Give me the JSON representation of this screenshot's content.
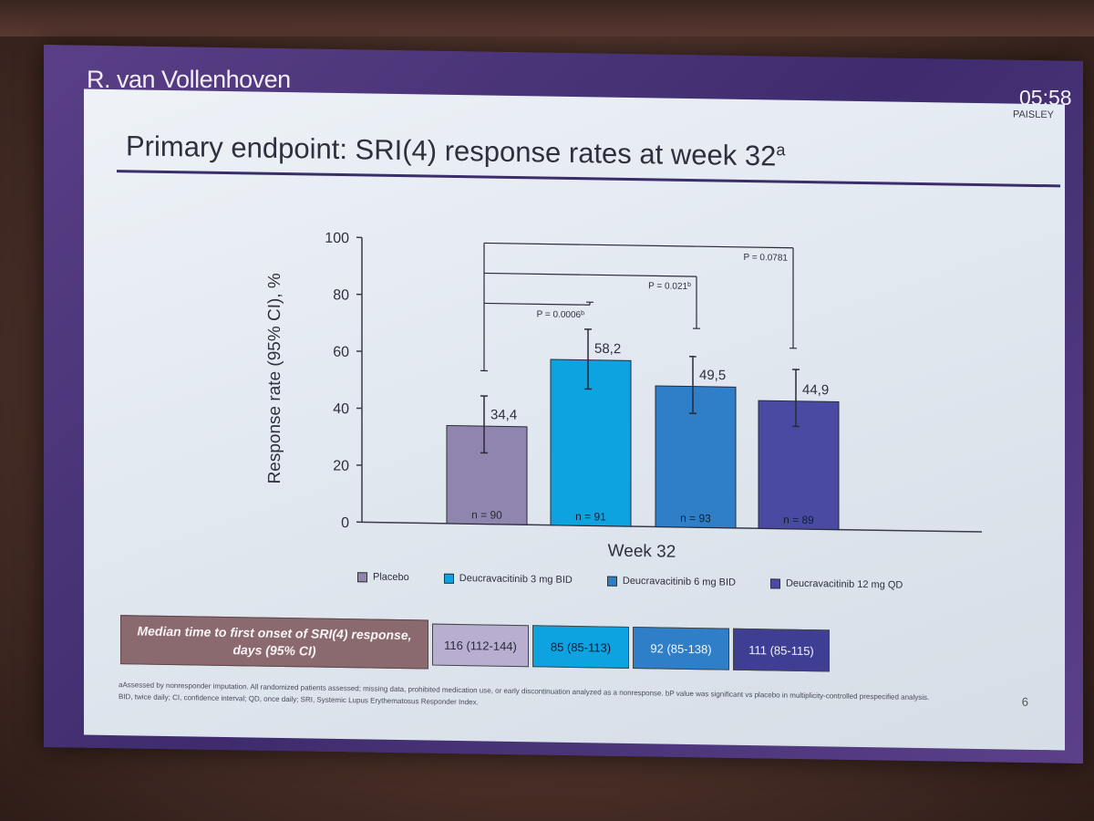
{
  "header": {
    "speaker": "R. van Vollenhoven",
    "clock": "05:58"
  },
  "slide": {
    "study_tag": "PAISLEY",
    "title": "Primary endpoint: SRI(4) response rates at week 32",
    "title_superscript": "a",
    "page_number": "6"
  },
  "chart_data": {
    "type": "bar",
    "ylabel": "Response rate (95% CI), %",
    "xlabel": "Week 32",
    "ylim": [
      0,
      100
    ],
    "yticks": [
      "0",
      "20",
      "40",
      "60",
      "80",
      "100"
    ],
    "grid": false,
    "legend_position": "bottom",
    "series": [
      {
        "name": "Placebo",
        "value": 34.4,
        "label": "34,4",
        "ci": [
          25,
          45
        ],
        "n": "n = 90",
        "color": "#8f85ae"
      },
      {
        "name": "Deucravacitinib 3 mg BID",
        "value": 58.2,
        "label": "58,2",
        "ci": [
          48,
          69
        ],
        "n": "n = 91",
        "color": "#0da2e0"
      },
      {
        "name": "Deucravacitinib 6 mg BID",
        "value": 49.5,
        "label": "49,5",
        "ci": [
          40,
          60
        ],
        "n": "n = 93",
        "color": "#2f7fc8"
      },
      {
        "name": "Deucravacitinib 12 mg QD",
        "value": 44.9,
        "label": "44,9",
        "ci": [
          36,
          56
        ],
        "n": "n = 89",
        "color": "#4b4aa3"
      }
    ],
    "comparisons": [
      {
        "to": 1,
        "p_text": "P = 0.0006",
        "p_sup": "b"
      },
      {
        "to": 2,
        "p_text": "P = 0.021",
        "p_sup": "b"
      },
      {
        "to": 3,
        "p_text": "P = 0.0781",
        "p_sup": ""
      }
    ]
  },
  "table": {
    "row_header": "Median time to first onset of SRI(4) response, days (95% CI)",
    "cells": [
      {
        "text": "116 (112-144)",
        "bg": "#b7aed0",
        "fg": "#2a2a3a"
      },
      {
        "text": "85 (85-113)",
        "bg": "#0da2e0",
        "fg": "#0c1a30"
      },
      {
        "text": "92 (85-138)",
        "bg": "#2f7fc8",
        "fg": "#f2f6fa"
      },
      {
        "text": "111 (85-115)",
        "bg": "#3f3e95",
        "fg": "#f2f2fa"
      }
    ]
  },
  "footnotes": {
    "line1": "aAssessed by nonresponder imputation. All randomized patients assessed; missing data, prohibited medication use, or early discontinuation analyzed as a nonresponse. bP value was significant vs placebo in multiplicity-controlled prespecified analysis.",
    "line2": "BID, twice daily; CI, confidence interval; QD, once daily; SRI, Systemic Lupus Erythematosus Responder Index."
  }
}
